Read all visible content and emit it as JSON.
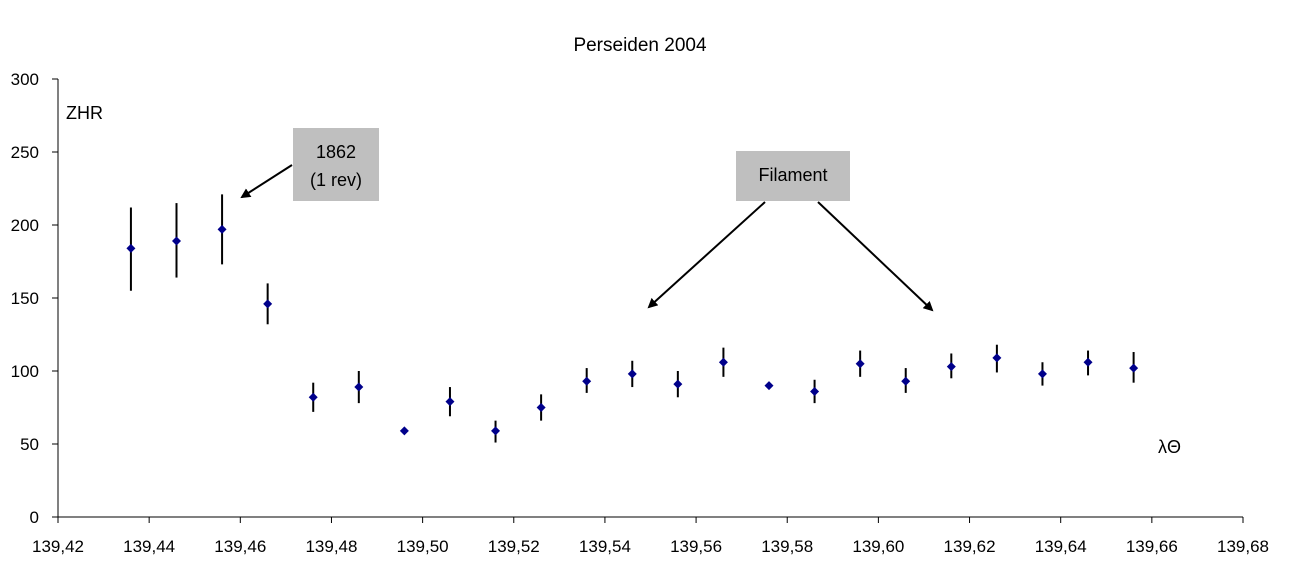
{
  "chart_data": {
    "type": "scatter",
    "title": "Perseiden 2004",
    "ylabel": "ZHR",
    "xlabel": "λΘ",
    "xlim": [
      139.42,
      139.68
    ],
    "ylim": [
      0,
      300
    ],
    "x_ticks": [
      "139,42",
      "139,44",
      "139,46",
      "139,48",
      "139,50",
      "139,52",
      "139,54",
      "139,56",
      "139,58",
      "139,60",
      "139,62",
      "139,64",
      "139,66",
      "139,68"
    ],
    "y_ticks": [
      "0",
      "50",
      "100",
      "150",
      "200",
      "250",
      "300"
    ],
    "grid": false,
    "error_bars": true,
    "points": [
      {
        "x": 139.436,
        "y": 184,
        "lo": 155,
        "hi": 212
      },
      {
        "x": 139.446,
        "y": 189,
        "lo": 164,
        "hi": 215
      },
      {
        "x": 139.456,
        "y": 197,
        "lo": 173,
        "hi": 221
      },
      {
        "x": 139.466,
        "y": 146,
        "lo": 132,
        "hi": 160
      },
      {
        "x": 139.476,
        "y": 82,
        "lo": 72,
        "hi": 92
      },
      {
        "x": 139.486,
        "y": 89,
        "lo": 78,
        "hi": 100
      },
      {
        "x": 139.496,
        "y": 59,
        "lo": 59,
        "hi": 59
      },
      {
        "x": 139.506,
        "y": 79,
        "lo": 69,
        "hi": 89
      },
      {
        "x": 139.516,
        "y": 59,
        "lo": 51,
        "hi": 66
      },
      {
        "x": 139.526,
        "y": 75,
        "lo": 66,
        "hi": 84
      },
      {
        "x": 139.536,
        "y": 93,
        "lo": 85,
        "hi": 102
      },
      {
        "x": 139.546,
        "y": 98,
        "lo": 89,
        "hi": 107
      },
      {
        "x": 139.556,
        "y": 91,
        "lo": 82,
        "hi": 100
      },
      {
        "x": 139.566,
        "y": 106,
        "lo": 96,
        "hi": 116
      },
      {
        "x": 139.576,
        "y": 90,
        "lo": 90,
        "hi": 90
      },
      {
        "x": 139.586,
        "y": 86,
        "lo": 78,
        "hi": 94
      },
      {
        "x": 139.596,
        "y": 105,
        "lo": 96,
        "hi": 114
      },
      {
        "x": 139.606,
        "y": 93,
        "lo": 85,
        "hi": 102
      },
      {
        "x": 139.616,
        "y": 103,
        "lo": 95,
        "hi": 112
      },
      {
        "x": 139.626,
        "y": 109,
        "lo": 99,
        "hi": 118
      },
      {
        "x": 139.636,
        "y": 98,
        "lo": 90,
        "hi": 106
      },
      {
        "x": 139.646,
        "y": 106,
        "lo": 97,
        "hi": 114
      },
      {
        "x": 139.656,
        "y": 102,
        "lo": 92,
        "hi": 113
      }
    ],
    "annotations": [
      {
        "lines": [
          "1862",
          "(1 rev)"
        ]
      },
      {
        "lines": [
          "Filament"
        ]
      }
    ],
    "colors": {
      "marker": "#00008B",
      "error_bar": "#000000",
      "annotation_box": "#BFBFBF"
    }
  }
}
